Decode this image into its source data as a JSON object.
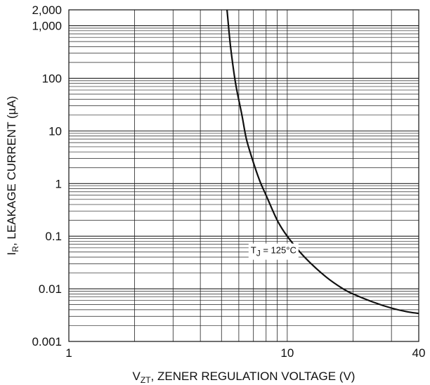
{
  "chart_data": {
    "type": "line",
    "title": "",
    "xlabel": {
      "symbol": "V",
      "subscript": "ZT",
      "text": ", ZENER REGULATION VOLTAGE (V)"
    },
    "ylabel": {
      "symbol": "I",
      "subscript": "R",
      "text": ", LEAKAGE CURRENT (µA)"
    },
    "xscale": "log",
    "yscale": "log",
    "xlim": [
      1,
      40
    ],
    "ylim": [
      0.001,
      2000
    ],
    "x_ticks": [
      {
        "value": 1,
        "label": "1"
      },
      {
        "value": 10,
        "label": "10"
      },
      {
        "value": 40,
        "label": "40"
      }
    ],
    "y_ticks": [
      {
        "value": 0.001,
        "label": "0.001"
      },
      {
        "value": 0.01,
        "label": "0.01"
      },
      {
        "value": 0.1,
        "label": "0.1"
      },
      {
        "value": 1,
        "label": "1"
      },
      {
        "value": 10,
        "label": "10"
      },
      {
        "value": 100,
        "label": "100"
      },
      {
        "value": 1000,
        "label": "1,000"
      },
      {
        "value": 2000,
        "label": "2,000"
      }
    ],
    "grid": true,
    "series": [
      {
        "x": [
          5.3,
          5.5,
          5.8,
          6.2,
          6.5,
          7.0,
          7.5,
          8.0,
          9.0,
          10.0,
          12.0,
          15.0,
          18.0,
          20.0,
          25.0,
          30.0,
          35.0,
          40.0
        ],
        "y": [
          2000,
          400,
          80,
          20,
          7,
          2.5,
          1.1,
          0.6,
          0.2,
          0.1,
          0.04,
          0.017,
          0.01,
          0.008,
          0.0055,
          0.0043,
          0.0037,
          0.0034
        ]
      }
    ],
    "annotations": [
      {
        "symbol": "T",
        "subscript": "J",
        "text": " = 125°C",
        "x": 6.8,
        "y": 0.055
      }
    ]
  }
}
